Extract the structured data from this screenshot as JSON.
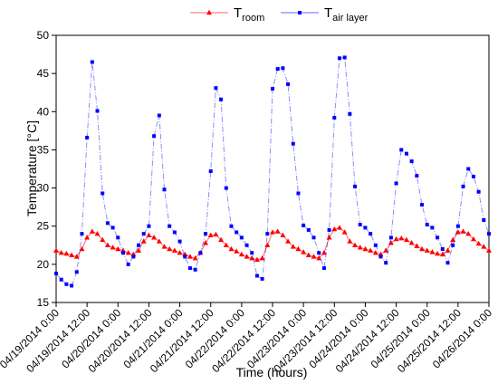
{
  "chart_data": {
    "type": "line",
    "xlabel": "Time (hours)",
    "ylabel": "Temperature [°C]",
    "x": [
      "2014-04-19T00:00",
      "2014-04-19T02:00",
      "2014-04-19T04:00",
      "2014-04-19T06:00",
      "2014-04-19T08:00",
      "2014-04-19T10:00",
      "2014-04-19T12:00",
      "2014-04-19T14:00",
      "2014-04-19T16:00",
      "2014-04-19T18:00",
      "2014-04-19T20:00",
      "2014-04-19T22:00",
      "2014-04-20T00:00",
      "2014-04-20T02:00",
      "2014-04-20T04:00",
      "2014-04-20T06:00",
      "2014-04-20T08:00",
      "2014-04-20T10:00",
      "2014-04-20T12:00",
      "2014-04-20T14:00",
      "2014-04-20T16:00",
      "2014-04-20T18:00",
      "2014-04-20T20:00",
      "2014-04-20T22:00",
      "2014-04-21T00:00",
      "2014-04-21T02:00",
      "2014-04-21T04:00",
      "2014-04-21T06:00",
      "2014-04-21T08:00",
      "2014-04-21T10:00",
      "2014-04-21T12:00",
      "2014-04-21T14:00",
      "2014-04-21T16:00",
      "2014-04-21T18:00",
      "2014-04-21T20:00",
      "2014-04-21T22:00",
      "2014-04-22T00:00",
      "2014-04-22T02:00",
      "2014-04-22T04:00",
      "2014-04-22T06:00",
      "2014-04-22T08:00",
      "2014-04-22T10:00",
      "2014-04-22T12:00",
      "2014-04-22T14:00",
      "2014-04-22T16:00",
      "2014-04-22T18:00",
      "2014-04-22T20:00",
      "2014-04-22T22:00",
      "2014-04-23T00:00",
      "2014-04-23T02:00",
      "2014-04-23T04:00",
      "2014-04-23T06:00",
      "2014-04-23T08:00",
      "2014-04-23T10:00",
      "2014-04-23T12:00",
      "2014-04-23T14:00",
      "2014-04-23T16:00",
      "2014-04-23T18:00",
      "2014-04-23T20:00",
      "2014-04-23T22:00",
      "2014-04-24T00:00",
      "2014-04-24T02:00",
      "2014-04-24T04:00",
      "2014-04-24T06:00",
      "2014-04-24T08:00",
      "2014-04-24T10:00",
      "2014-04-24T12:00",
      "2014-04-24T14:00",
      "2014-04-24T16:00",
      "2014-04-24T18:00",
      "2014-04-24T20:00",
      "2014-04-24T22:00",
      "2014-04-25T00:00",
      "2014-04-25T02:00",
      "2014-04-25T04:00",
      "2014-04-25T06:00",
      "2014-04-25T08:00",
      "2014-04-25T10:00",
      "2014-04-25T12:00",
      "2014-04-25T14:00",
      "2014-04-25T16:00",
      "2014-04-25T18:00",
      "2014-04-25T20:00",
      "2014-04-25T22:00",
      "2014-04-26T00:00"
    ],
    "series": [
      {
        "name": "Troom",
        "color": "#ff0000",
        "marker": "triangle",
        "values": [
          21.8,
          21.5,
          21.4,
          21.2,
          21.0,
          22.0,
          23.5,
          24.3,
          24.0,
          23.2,
          22.5,
          22.2,
          22.0,
          21.8,
          21.5,
          21.3,
          21.8,
          23.0,
          23.8,
          23.5,
          23.0,
          22.3,
          22.0,
          21.8,
          21.5,
          21.3,
          21.0,
          20.8,
          21.5,
          22.8,
          23.8,
          23.9,
          23.2,
          22.5,
          22.0,
          21.7,
          21.3,
          21.0,
          20.8,
          20.6,
          20.8,
          22.5,
          24.2,
          24.3,
          23.8,
          23.0,
          22.3,
          22.0,
          21.6,
          21.2,
          21.0,
          20.8,
          21.5,
          23.5,
          24.6,
          24.8,
          24.2,
          23.0,
          22.5,
          22.2,
          22.0,
          21.8,
          21.5,
          21.3,
          21.8,
          22.8,
          23.3,
          23.4,
          23.2,
          22.8,
          22.4,
          22.0,
          21.8,
          21.6,
          21.4,
          21.3,
          21.8,
          23.2,
          24.2,
          24.3,
          24.0,
          23.3,
          22.7,
          22.3,
          21.8
        ]
      },
      {
        "name": "Tair layer",
        "color": "#0000ff",
        "marker": "square",
        "values": [
          18.8,
          18.0,
          17.4,
          17.2,
          19.0,
          24.0,
          36.6,
          46.5,
          40.1,
          29.3,
          25.4,
          24.8,
          23.5,
          21.5,
          20.0,
          21.0,
          22.5,
          24.0,
          25.0,
          36.8,
          39.5,
          29.8,
          25.0,
          24.2,
          23.0,
          21.0,
          19.5,
          19.3,
          21.5,
          24.0,
          32.2,
          43.1,
          41.6,
          30.0,
          25.0,
          24.2,
          23.5,
          22.5,
          21.5,
          18.5,
          18.1,
          24.0,
          43.0,
          45.6,
          45.7,
          43.6,
          35.8,
          29.3,
          25.1,
          24.5,
          23.5,
          21.5,
          19.5,
          24.5,
          39.2,
          47.0,
          47.1,
          39.7,
          30.2,
          25.2,
          24.8,
          24.0,
          22.5,
          21.0,
          20.2,
          23.5,
          30.6,
          35.0,
          34.5,
          33.5,
          31.6,
          27.8,
          25.2,
          24.8,
          23.5,
          22.0,
          20.2,
          22.5,
          25.0,
          30.2,
          32.5,
          31.5,
          29.5,
          25.8,
          24.0
        ]
      }
    ],
    "xlim": [
      "2014-04-19T00:00",
      "2014-04-26T00:00"
    ],
    "xticks": [
      {
        "value": "2014-04-19T00:00",
        "label": "04/19/2014 0:00"
      },
      {
        "value": "2014-04-19T12:00",
        "label": "04/19/2014 12:00"
      },
      {
        "value": "2014-04-20T00:00",
        "label": "04/20/2014 0:00"
      },
      {
        "value": "2014-04-20T12:00",
        "label": "04/20/2014 12:00"
      },
      {
        "value": "2014-04-21T00:00",
        "label": "04/21/2014 0:00"
      },
      {
        "value": "2014-04-21T12:00",
        "label": "04/21/2014 12:00"
      },
      {
        "value": "2014-04-22T00:00",
        "label": "04/22/2014 0:00"
      },
      {
        "value": "2014-04-22T12:00",
        "label": "04/22/2014 12:00"
      },
      {
        "value": "2014-04-23T00:00",
        "label": "04/23/2014 0:00"
      },
      {
        "value": "2014-04-23T12:00",
        "label": "04/23/2014 12:00"
      },
      {
        "value": "2014-04-24T00:00",
        "label": "04/24/2014 0:00"
      },
      {
        "value": "2014-04-24T12:00",
        "label": "04/24/2014 12:00"
      },
      {
        "value": "2014-04-25T00:00",
        "label": "04/25/2014 0:00"
      },
      {
        "value": "2014-04-25T12:00",
        "label": "04/25/2014 12:00"
      },
      {
        "value": "2014-04-26T00:00",
        "label": "04/26/2014 0:00"
      }
    ],
    "ylim": [
      15,
      50
    ],
    "yticks": [
      15,
      20,
      25,
      30,
      35,
      40,
      45,
      50
    ],
    "legend": "top"
  }
}
